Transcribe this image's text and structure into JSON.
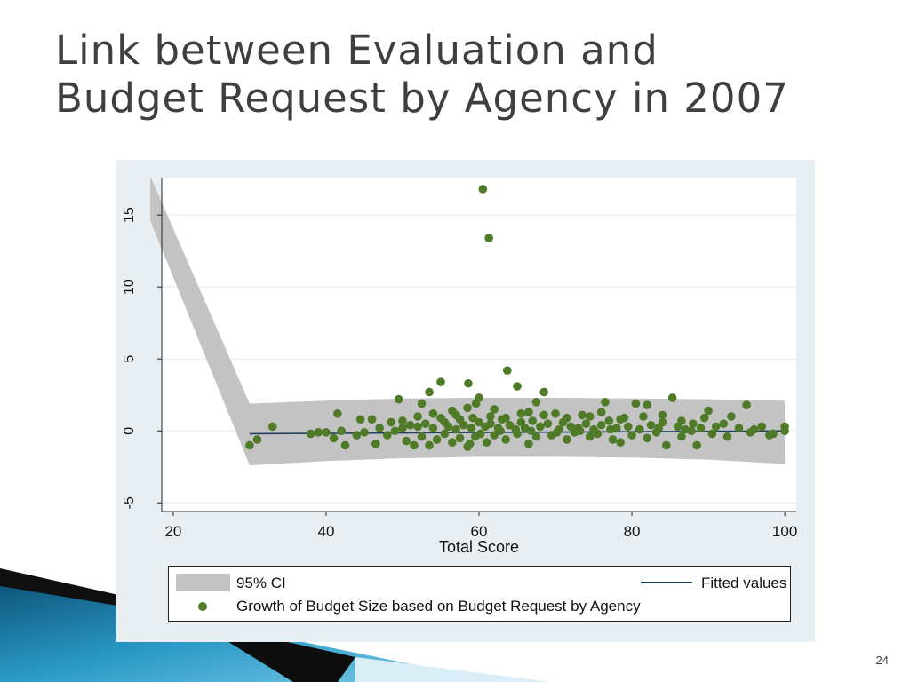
{
  "slide": {
    "title_line1": "Link between Evaluation and",
    "title_line2": "Budget Request by Agency in 2007",
    "number": "24"
  },
  "colors": {
    "title": "#3f3f3f",
    "panel_bg": "#e8eef1",
    "ci_band": "#c3c3c3",
    "fit_line": "#1f3f66",
    "points": "#4f7a28",
    "deco_blue": "#1a7fa8"
  },
  "chart_data": {
    "type": "scatter",
    "xlabel": "Total Score",
    "ylabel": "",
    "xlim": [
      18.5,
      101.5
    ],
    "ylim": [
      -5.6,
      17.6
    ],
    "xticks": [
      20,
      40,
      60,
      80,
      100
    ],
    "yticks": [
      -5,
      0,
      5,
      10,
      15
    ],
    "grid": "horizontal",
    "legend_position": "bottom",
    "legend": {
      "ci_label": "95% CI",
      "fit_label": "Fitted values",
      "points_label": "Growth of Budget Size based on Budget Request by Agency"
    },
    "ci_band": {
      "x": [
        17,
        30,
        40,
        50,
        60,
        70,
        80,
        90,
        100
      ],
      "upper": [
        17.7,
        1.9,
        2.1,
        2.25,
        2.3,
        2.3,
        2.25,
        2.2,
        2.1
      ],
      "lower": [
        14.6,
        -2.4,
        -2.1,
        -1.9,
        -1.8,
        -1.8,
        -1.85,
        -2.0,
        -2.3
      ]
    },
    "fitted": {
      "x": [
        30,
        100
      ],
      "y": [
        -0.2,
        0.0
      ]
    },
    "points": [
      [
        60.5,
        16.8
      ],
      [
        61.3,
        13.4
      ],
      [
        63.7,
        4.2
      ],
      [
        55.0,
        3.4
      ],
      [
        58.6,
        3.3
      ],
      [
        65.0,
        3.1
      ],
      [
        68.5,
        2.7
      ],
      [
        53.5,
        2.7
      ],
      [
        85.3,
        2.3
      ],
      [
        49.5,
        2.2
      ],
      [
        60.0,
        2.3
      ],
      [
        59.6,
        1.9
      ],
      [
        52.5,
        1.9
      ],
      [
        67.5,
        2.0
      ],
      [
        76.5,
        2.0
      ],
      [
        80.5,
        1.9
      ],
      [
        82.0,
        1.8
      ],
      [
        95.0,
        1.8
      ],
      [
        41.5,
        1.2
      ],
      [
        56.5,
        1.4
      ],
      [
        62.0,
        1.5
      ],
      [
        66.5,
        1.3
      ],
      [
        70.0,
        1.2
      ],
      [
        73.5,
        1.1
      ],
      [
        79.0,
        0.9
      ],
      [
        90.0,
        1.4
      ],
      [
        93.0,
        1.0
      ],
      [
        44.5,
        0.8
      ],
      [
        46.0,
        0.8
      ],
      [
        48.5,
        0.6
      ],
      [
        50.0,
        0.7
      ],
      [
        51.0,
        0.4
      ],
      [
        52.0,
        0.3
      ],
      [
        53.0,
        0.5
      ],
      [
        54.0,
        0.2
      ],
      [
        55.5,
        0.6
      ],
      [
        56.0,
        0.3
      ],
      [
        57.0,
        0.1
      ],
      [
        57.5,
        0.8
      ],
      [
        58.0,
        0.4
      ],
      [
        59.0,
        0.2
      ],
      [
        60.0,
        0.6
      ],
      [
        60.8,
        0.3
      ],
      [
        61.5,
        0.5
      ],
      [
        62.5,
        0.2
      ],
      [
        63.0,
        0.8
      ],
      [
        64.0,
        0.4
      ],
      [
        64.8,
        0.1
      ],
      [
        65.5,
        0.6
      ],
      [
        66.0,
        0.2
      ],
      [
        67.0,
        0.7
      ],
      [
        68.0,
        0.3
      ],
      [
        69.0,
        0.5
      ],
      [
        70.5,
        0.1
      ],
      [
        71.0,
        0.6
      ],
      [
        72.0,
        0.3
      ],
      [
        73.0,
        0.2
      ],
      [
        74.0,
        0.5
      ],
      [
        75.0,
        0.1
      ],
      [
        76.0,
        0.4
      ],
      [
        77.0,
        0.7
      ],
      [
        78.0,
        0.2
      ],
      [
        79.5,
        0.3
      ],
      [
        81.0,
        0.1
      ],
      [
        82.5,
        0.4
      ],
      [
        83.5,
        0.2
      ],
      [
        84.0,
        0.6
      ],
      [
        86.0,
        0.3
      ],
      [
        87.0,
        0.1
      ],
      [
        88.0,
        0.5
      ],
      [
        89.0,
        0.2
      ],
      [
        91.0,
        0.3
      ],
      [
        92.0,
        0.5
      ],
      [
        94.0,
        0.2
      ],
      [
        96.0,
        0.1
      ],
      [
        97.0,
        0.3
      ],
      [
        98.0,
        -0.3
      ],
      [
        100.0,
        0.3
      ],
      [
        100.0,
        0.0
      ],
      [
        30.0,
        -1.0
      ],
      [
        31.0,
        -0.6
      ],
      [
        33.0,
        0.3
      ],
      [
        38.0,
        -0.2
      ],
      [
        39.0,
        -0.1
      ],
      [
        40.0,
        -0.1
      ],
      [
        41.0,
        -0.5
      ],
      [
        42.0,
        0.0
      ],
      [
        42.5,
        -1.0
      ],
      [
        44.0,
        -0.3
      ],
      [
        45.0,
        -0.1
      ],
      [
        46.5,
        -0.9
      ],
      [
        47.0,
        0.2
      ],
      [
        48.0,
        -0.3
      ],
      [
        49.0,
        0.0
      ],
      [
        50.5,
        -0.7
      ],
      [
        51.5,
        -1.0
      ],
      [
        52.5,
        -0.4
      ],
      [
        53.5,
        -1.0
      ],
      [
        54.5,
        -0.6
      ],
      [
        55.5,
        -0.2
      ],
      [
        56.5,
        -0.8
      ],
      [
        57.5,
        -0.5
      ],
      [
        58.5,
        -1.1
      ],
      [
        59.5,
        -0.4
      ],
      [
        61.0,
        -0.8
      ],
      [
        62.0,
        -0.3
      ],
      [
        63.5,
        -0.6
      ],
      [
        65.0,
        -0.2
      ],
      [
        66.5,
        -0.9
      ],
      [
        67.5,
        -0.4
      ],
      [
        69.5,
        -0.3
      ],
      [
        71.5,
        -0.6
      ],
      [
        72.5,
        -0.1
      ],
      [
        74.5,
        -0.4
      ],
      [
        75.5,
        -0.2
      ],
      [
        77.5,
        -0.6
      ],
      [
        78.5,
        -0.8
      ],
      [
        80.0,
        -0.3
      ],
      [
        82.0,
        -0.5
      ],
      [
        84.5,
        -1.0
      ],
      [
        86.5,
        -0.4
      ],
      [
        88.5,
        -1.0
      ],
      [
        90.5,
        -0.2
      ],
      [
        92.5,
        -0.4
      ],
      [
        95.5,
        -0.1
      ],
      [
        98.5,
        -0.2
      ],
      [
        50.0,
        0.2
      ],
      [
        52.0,
        1.0
      ],
      [
        54.0,
        1.2
      ],
      [
        55.0,
        0.9
      ],
      [
        57.0,
        1.1
      ],
      [
        58.5,
        1.6
      ],
      [
        61.5,
        1.0
      ],
      [
        63.5,
        0.9
      ],
      [
        65.5,
        1.2
      ],
      [
        68.5,
        1.1
      ],
      [
        71.5,
        0.9
      ],
      [
        74.5,
        1.0
      ],
      [
        76.0,
        1.3
      ],
      [
        78.5,
        0.8
      ],
      [
        81.5,
        1.0
      ],
      [
        84.0,
        1.1
      ],
      [
        86.5,
        0.7
      ],
      [
        89.5,
        0.9
      ],
      [
        58.8,
        -0.9
      ],
      [
        59.2,
        0.9
      ],
      [
        60.2,
        -0.2
      ],
      [
        62.8,
        0.0
      ],
      [
        66.8,
        0.0
      ],
      [
        70.2,
        -0.1
      ],
      [
        73.2,
        0.0
      ],
      [
        77.2,
        0.1
      ],
      [
        83.2,
        -0.1
      ],
      [
        87.8,
        0.0
      ]
    ]
  }
}
